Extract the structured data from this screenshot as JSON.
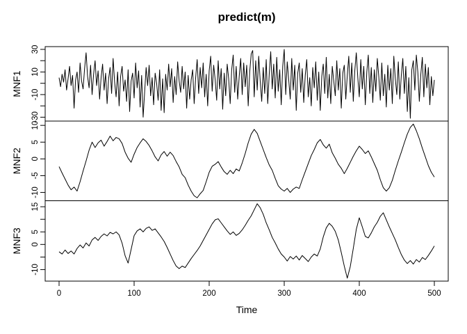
{
  "title": "predict(m)",
  "xlabel": "Time",
  "colors": {
    "line": "#000000",
    "box": "#000000",
    "background": "#ffffff"
  },
  "chart_data": {
    "type": "line",
    "title": "predict(m)",
    "xlabel": "Time",
    "xlim": [
      0,
      500
    ],
    "x_ticks": [
      0,
      100,
      200,
      300,
      400,
      500
    ],
    "x_tick_labels": [
      "0",
      "100",
      "200",
      "300",
      "400",
      "500"
    ],
    "legend": "none",
    "grid": false,
    "panels": [
      {
        "label": "MNF1",
        "x_start": 0,
        "x_step": 2,
        "y_ticks": [
          -30,
          -20,
          -10,
          0,
          10,
          20,
          30
        ],
        "y_labeled_ticks": [
          -30,
          -10,
          10,
          30
        ],
        "values": [
          5,
          -3,
          8,
          1,
          12,
          -6,
          4,
          15,
          -2,
          7,
          -22,
          3,
          10,
          -8,
          18,
          2,
          -5,
          13,
          27,
          6,
          -4,
          16,
          -10,
          8,
          20,
          -2,
          11,
          -14,
          5,
          17,
          -6,
          9,
          -18,
          4,
          14,
          -9,
          22,
          1,
          -12,
          10,
          -20,
          6,
          15,
          -7,
          3,
          -16,
          12,
          -25,
          2,
          9,
          -13,
          18,
          -4,
          11,
          -21,
          7,
          -30,
          -8,
          14,
          -2,
          16,
          -11,
          5,
          -19,
          9,
          0,
          -15,
          12,
          -24,
          4,
          -26,
          8,
          -6,
          17,
          -3,
          13,
          -17,
          6,
          -10,
          19,
          2,
          -8,
          15,
          -5,
          10,
          -22,
          7,
          -14,
          3,
          12,
          -18,
          5,
          21,
          -9,
          14,
          -4,
          18,
          -12,
          8,
          -20,
          11,
          24,
          -7,
          16,
          3,
          -15,
          20,
          -5,
          13,
          -23,
          9,
          -11,
          17,
          4,
          -18,
          12,
          25,
          -8,
          15,
          -14,
          6,
          22,
          -10,
          18,
          -3,
          16,
          -20,
          10,
          26,
          29,
          -12,
          20,
          -6,
          24,
          2,
          -16,
          14,
          -9,
          21,
          -18,
          8,
          28,
          -5,
          17,
          -13,
          23,
          -7,
          12,
          -19,
          15,
          30,
          -10,
          19,
          3,
          -14,
          22,
          -6,
          16,
          -24,
          9,
          18,
          -8,
          13,
          -17,
          7,
          21,
          -12,
          5,
          -20,
          14,
          -4,
          19,
          -15,
          10,
          -24,
          6,
          17,
          -9,
          23,
          -13,
          8,
          -18,
          15,
          2,
          -11,
          20,
          -6,
          13,
          -22,
          9,
          16,
          -14,
          7,
          24,
          -8,
          18,
          -16,
          11,
          27,
          5,
          -12,
          21,
          -5,
          15,
          -19,
          10,
          25,
          -9,
          14,
          -17,
          12,
          -7,
          22,
          6,
          -15,
          18,
          -11,
          8,
          -21,
          16,
          -6,
          13,
          -18,
          24,
          4,
          -10,
          19,
          -14,
          7,
          22,
          -9,
          15,
          -25,
          5,
          -31,
          12,
          20,
          -6,
          25,
          10,
          -16,
          8,
          23,
          -12,
          17,
          -4,
          14,
          -19,
          6,
          -11,
          3
        ]
      },
      {
        "label": "MNF2",
        "x_start": 0,
        "x_step": 4,
        "y_ticks": [
          -10,
          -5,
          0,
          5,
          10
        ],
        "y_labeled_ticks": [
          -10,
          -5,
          0,
          5,
          10
        ],
        "values": [
          -2.3,
          -4.2,
          -6.0,
          -7.8,
          -9.2,
          -8.4,
          -9.6,
          -6.8,
          -3.6,
          -0.6,
          2.6,
          5.0,
          3.4,
          4.8,
          5.6,
          3.8,
          5.2,
          6.8,
          5.4,
          6.4,
          6.0,
          4.6,
          2.0,
          0.2,
          -1.0,
          1.4,
          3.4,
          4.8,
          6.0,
          5.2,
          4.0,
          2.4,
          0.6,
          -0.6,
          1.2,
          2.2,
          0.8,
          2.0,
          1.0,
          -0.8,
          -2.4,
          -4.6,
          -5.6,
          -7.8,
          -9.6,
          -11.0,
          -11.6,
          -10.4,
          -9.4,
          -6.8,
          -4.0,
          -2.2,
          -1.6,
          -0.8,
          -2.4,
          -3.8,
          -4.6,
          -3.4,
          -4.4,
          -3.0,
          -3.6,
          -1.2,
          1.6,
          4.8,
          7.4,
          8.8,
          7.6,
          5.2,
          2.8,
          0.4,
          -1.8,
          -3.4,
          -5.8,
          -8.0,
          -9.0,
          -9.6,
          -8.8,
          -10.0,
          -9.0,
          -8.4,
          -8.8,
          -6.2,
          -3.8,
          -1.4,
          1.0,
          2.8,
          4.8,
          5.8,
          4.2,
          3.2,
          4.4,
          1.8,
          0.2,
          -1.6,
          -2.8,
          -4.4,
          -2.8,
          -1.0,
          0.8,
          2.4,
          3.8,
          2.8,
          1.6,
          2.4,
          0.6,
          -1.4,
          -3.4,
          -6.2,
          -8.6,
          -9.6,
          -8.6,
          -6.4,
          -3.4,
          -0.6,
          2.0,
          4.8,
          7.4,
          9.4,
          10.4,
          8.4,
          6.0,
          3.2,
          0.6,
          -2.0,
          -4.0,
          -5.4
        ]
      },
      {
        "label": "MNF3",
        "x_start": 0,
        "x_step": 4,
        "y_ticks": [
          -10,
          -5,
          0,
          5,
          10,
          15
        ],
        "y_labeled_ticks": [
          -10,
          0,
          5,
          15
        ],
        "values": [
          -2.9,
          -3.8,
          -2.2,
          -3.6,
          -2.6,
          -3.8,
          -1.6,
          -0.2,
          -1.4,
          0.6,
          -0.6,
          1.8,
          2.8,
          1.6,
          3.2,
          4.2,
          3.4,
          4.8,
          4.2,
          5.0,
          3.8,
          0.5,
          -4.5,
          -7.4,
          -2.0,
          3.5,
          5.4,
          6.2,
          5.0,
          6.4,
          7.0,
          5.6,
          6.2,
          4.6,
          3.0,
          1.2,
          -1.2,
          -3.8,
          -6.4,
          -8.6,
          -9.6,
          -8.6,
          -9.2,
          -7.4,
          -5.6,
          -4.0,
          -2.4,
          -0.6,
          1.6,
          3.8,
          6.0,
          8.2,
          9.8,
          10.2,
          8.6,
          7.0,
          5.4,
          4.0,
          5.0,
          3.6,
          4.4,
          5.8,
          7.6,
          9.6,
          11.4,
          13.8,
          16.2,
          14.6,
          12.0,
          8.6,
          5.8,
          2.8,
          0.6,
          -1.8,
          -3.8,
          -5.0,
          -6.6,
          -4.8,
          -5.8,
          -4.6,
          -6.2,
          -4.4,
          -5.6,
          -6.8,
          -5.0,
          -3.8,
          -4.6,
          -1.8,
          3.0,
          6.6,
          8.4,
          7.2,
          5.2,
          1.8,
          -3.2,
          -8.6,
          -13.4,
          -8.8,
          -1.6,
          6.0,
          10.6,
          7.0,
          3.2,
          2.6,
          4.6,
          7.0,
          8.8,
          11.2,
          12.6,
          9.8,
          7.0,
          4.4,
          1.8,
          -1.2,
          -4.0,
          -6.2,
          -7.6,
          -6.4,
          -7.8,
          -6.0,
          -7.0,
          -5.2,
          -6.0,
          -4.4,
          -2.6,
          -0.6
        ]
      }
    ]
  }
}
